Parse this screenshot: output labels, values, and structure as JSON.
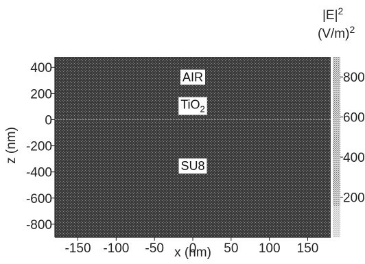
{
  "chart_data": {
    "type": "heatmap",
    "xlabel": "x (nm)",
    "ylabel": "z (nm)",
    "x_ticks": [
      "-150",
      "-100",
      "-50",
      "0",
      "50",
      "100",
      "150"
    ],
    "y_ticks": [
      "400",
      "200",
      "0",
      "-200",
      "-400",
      "-600",
      "-800"
    ],
    "xlim": [
      -180,
      180
    ],
    "ylim": [
      -900,
      480
    ],
    "colorbar": {
      "title_line1": "|E|",
      "title_line1_sup": "2",
      "title_line2": "(V/m)",
      "title_line2_sup": "2",
      "ticks": [
        "800",
        "600",
        "400",
        "200"
      ],
      "range": [
        0,
        900
      ]
    },
    "regions": [
      {
        "label": "AIR",
        "x": 0,
        "z": 330
      },
      {
        "label": "TiO",
        "sub": "2",
        "x": 0,
        "z": 120
      },
      {
        "label": "SU8",
        "x": 0,
        "z": -350
      }
    ],
    "interfaces_z": [
      0
    ]
  },
  "colors": {
    "field": "#3a3a3a",
    "axis": "#222222",
    "label_box": "#ffffff"
  }
}
